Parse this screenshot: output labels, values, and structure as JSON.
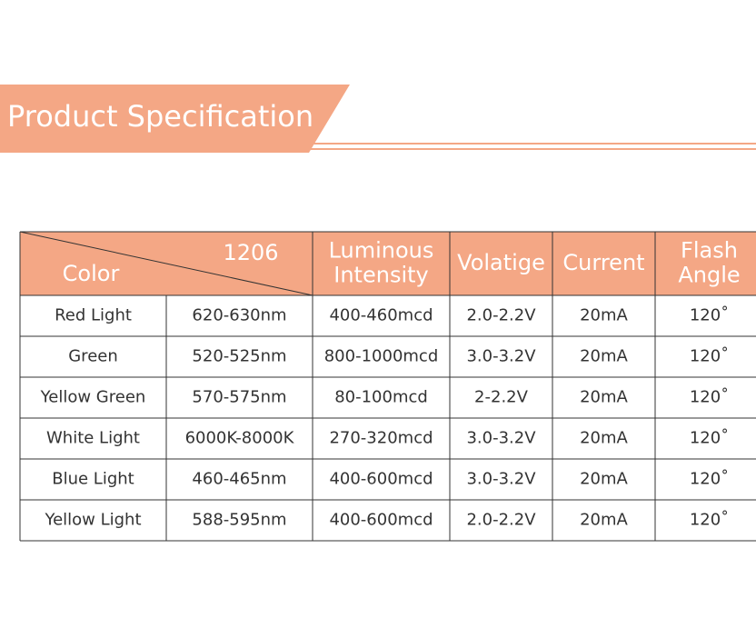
{
  "header": {
    "title": "Product Specification"
  },
  "table": {
    "corner": {
      "top": "1206",
      "bottom": "Color"
    },
    "columns": [
      [
        "Luminous",
        "Intensity"
      ],
      [
        "Volatige"
      ],
      [
        "Current"
      ],
      [
        "Flash",
        "Angle"
      ]
    ],
    "rows": [
      [
        "Red Light",
        "620-630nm",
        "400-460mcd",
        "2.0-2.2V",
        "20mA",
        "120˚"
      ],
      [
        "Green",
        "520-525nm",
        "800-1000mcd",
        "3.0-3.2V",
        "20mA",
        "120˚"
      ],
      [
        "Yellow Green",
        "570-575nm",
        "80-100mcd",
        "2-2.2V",
        "20mA",
        "120˚"
      ],
      [
        "White Light",
        "6000K-8000K",
        "270-320mcd",
        "3.0-3.2V",
        "20mA",
        "120˚"
      ],
      [
        "Blue Light",
        "460-465nm",
        "400-600mcd",
        "3.0-3.2V",
        "20mA",
        "120˚"
      ],
      [
        "Yellow Light",
        "588-595nm",
        "400-600mcd",
        "2.0-2.2V",
        "20mA",
        "120˚"
      ]
    ]
  }
}
